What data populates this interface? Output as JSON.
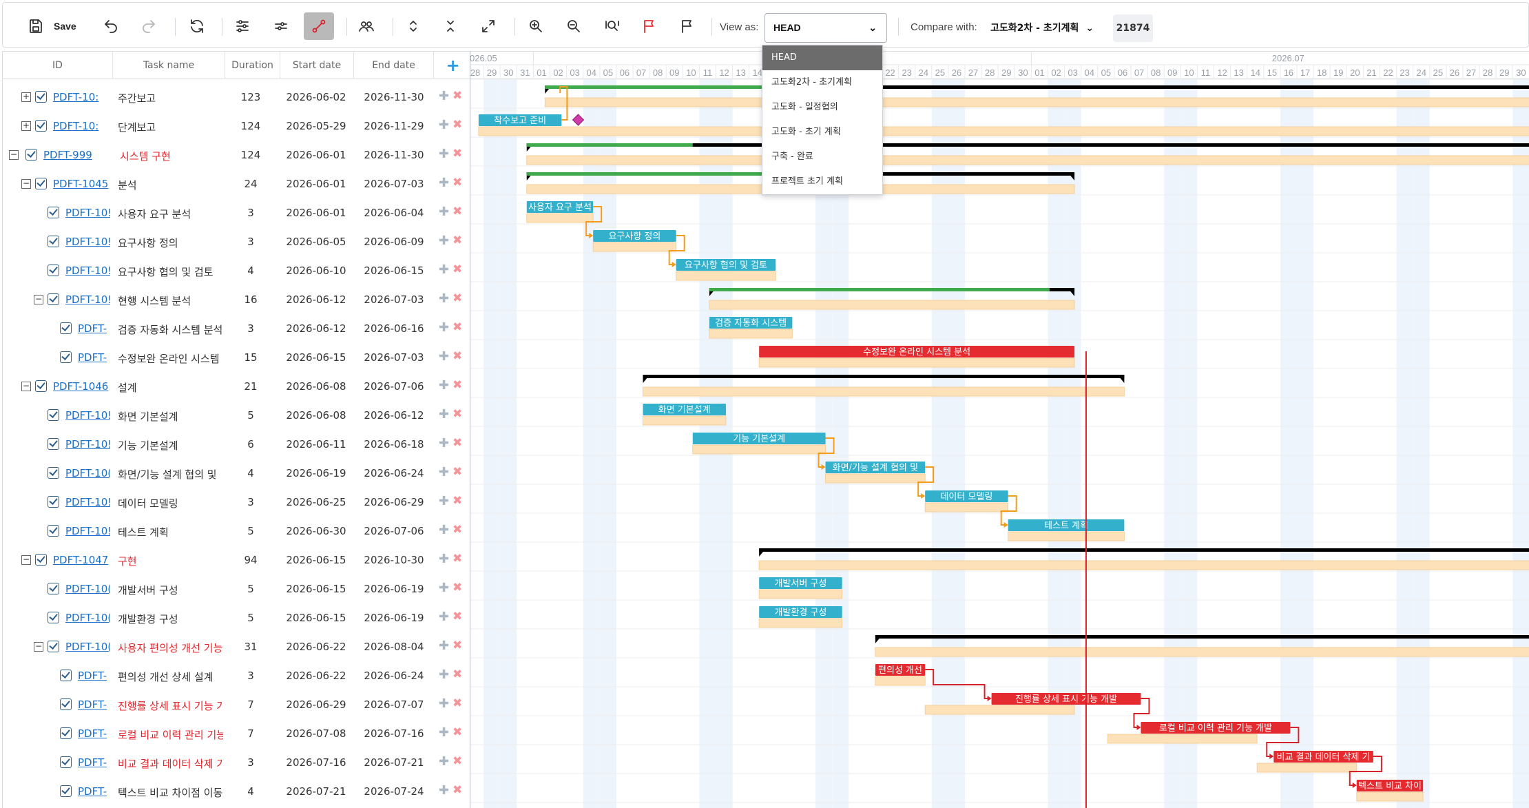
{
  "toolbar": {
    "save_label": "Save",
    "view_label": "View as:",
    "view_value": "HEAD",
    "compare_label": "Compare with:",
    "compare_value": "고도화2차 - 초기계획",
    "count": "21874"
  },
  "view_options": [
    "HEAD",
    "고도화2차 - 초기계획",
    "고도화 - 일정협의",
    "고도화 - 초기 계획",
    "구축 - 완료",
    "프로젝트 초기 계획"
  ],
  "grid": {
    "columns": [
      "ID",
      "Task name",
      "Duration",
      "Start date",
      "End date"
    ],
    "rows": [
      {
        "id": "PDFT-10:",
        "name": "주간보고",
        "duration": "123",
        "start": "2026-06-02",
        "end": "2026-11-30",
        "level": 1,
        "toggle": "+",
        "red": false
      },
      {
        "id": "PDFT-10:",
        "name": "단계보고",
        "duration": "124",
        "start": "2026-05-29",
        "end": "2026-11-29",
        "level": 1,
        "toggle": "+",
        "red": false
      },
      {
        "id": "PDFT-999",
        "name": "시스템 구현",
        "duration": "124",
        "start": "2026-06-01",
        "end": "2026-11-30",
        "level": 0,
        "toggle": "−",
        "red": true
      },
      {
        "id": "PDFT-1045",
        "name": "분석",
        "duration": "24",
        "start": "2026-06-01",
        "end": "2026-07-03",
        "level": 1,
        "toggle": "−",
        "red": false
      },
      {
        "id": "PDFT-10!",
        "name": "사용자 요구 분석",
        "duration": "3",
        "start": "2026-06-01",
        "end": "2026-06-04",
        "level": 2,
        "toggle": "",
        "red": false
      },
      {
        "id": "PDFT-10!",
        "name": "요구사항 정의",
        "duration": "3",
        "start": "2026-06-05",
        "end": "2026-06-09",
        "level": 2,
        "toggle": "",
        "red": false
      },
      {
        "id": "PDFT-10!",
        "name": "요구사항 협의 및 검토",
        "duration": "4",
        "start": "2026-06-10",
        "end": "2026-06-15",
        "level": 2,
        "toggle": "",
        "red": false
      },
      {
        "id": "PDFT-10!",
        "name": "현행 시스템 분석",
        "duration": "16",
        "start": "2026-06-12",
        "end": "2026-07-03",
        "level": 2,
        "toggle": "−",
        "red": false
      },
      {
        "id": "PDFT-",
        "name": "검증 자동화 시스템 분석",
        "duration": "3",
        "start": "2026-06-12",
        "end": "2026-06-16",
        "level": 3,
        "toggle": "",
        "red": false
      },
      {
        "id": "PDFT-",
        "name": "수정보완 온라인 시스템",
        "duration": "15",
        "start": "2026-06-15",
        "end": "2026-07-03",
        "level": 3,
        "toggle": "",
        "red": false
      },
      {
        "id": "PDFT-1046",
        "name": "설계",
        "duration": "21",
        "start": "2026-06-08",
        "end": "2026-07-06",
        "level": 1,
        "toggle": "−",
        "red": false
      },
      {
        "id": "PDFT-10!",
        "name": "화면 기본설계",
        "duration": "5",
        "start": "2026-06-08",
        "end": "2026-06-12",
        "level": 2,
        "toggle": "",
        "red": false
      },
      {
        "id": "PDFT-10!",
        "name": "기능 기본설계",
        "duration": "6",
        "start": "2026-06-11",
        "end": "2026-06-18",
        "level": 2,
        "toggle": "",
        "red": false
      },
      {
        "id": "PDFT-10(",
        "name": "화면/기능 설계 협의 및",
        "duration": "4",
        "start": "2026-06-19",
        "end": "2026-06-24",
        "level": 2,
        "toggle": "",
        "red": false
      },
      {
        "id": "PDFT-10!",
        "name": "데이터 모델링",
        "duration": "3",
        "start": "2026-06-25",
        "end": "2026-06-29",
        "level": 2,
        "toggle": "",
        "red": false
      },
      {
        "id": "PDFT-10!",
        "name": "테스트 계획",
        "duration": "5",
        "start": "2026-06-30",
        "end": "2026-07-06",
        "level": 2,
        "toggle": "",
        "red": false
      },
      {
        "id": "PDFT-1047",
        "name": "구현",
        "duration": "94",
        "start": "2026-06-15",
        "end": "2026-10-30",
        "level": 1,
        "toggle": "−",
        "red": true
      },
      {
        "id": "PDFT-10(",
        "name": "개발서버 구성",
        "duration": "5",
        "start": "2026-06-15",
        "end": "2026-06-19",
        "level": 2,
        "toggle": "",
        "red": false
      },
      {
        "id": "PDFT-10(",
        "name": "개발환경 구성",
        "duration": "5",
        "start": "2026-06-15",
        "end": "2026-06-19",
        "level": 2,
        "toggle": "",
        "red": false
      },
      {
        "id": "PDFT-10(",
        "name": "사용자 편의성 개선 기능",
        "duration": "31",
        "start": "2026-06-22",
        "end": "2026-08-04",
        "level": 2,
        "toggle": "−",
        "red": true
      },
      {
        "id": "PDFT-",
        "name": "편의성 개선 상세 설계",
        "duration": "3",
        "start": "2026-06-22",
        "end": "2026-06-24",
        "level": 3,
        "toggle": "",
        "red": false
      },
      {
        "id": "PDFT-",
        "name": "진행률 상세 표시 기능 가",
        "duration": "7",
        "start": "2026-06-29",
        "end": "2026-07-07",
        "level": 3,
        "toggle": "",
        "red": true
      },
      {
        "id": "PDFT-",
        "name": "로컬 비교 이력 관리 기능",
        "duration": "7",
        "start": "2026-07-08",
        "end": "2026-07-16",
        "level": 3,
        "toggle": "",
        "red": true
      },
      {
        "id": "PDFT-",
        "name": "비교 결과 데이터 삭제 기",
        "duration": "3",
        "start": "2026-07-16",
        "end": "2026-07-21",
        "level": 3,
        "toggle": "",
        "red": true
      },
      {
        "id": "PDFT-",
        "name": "텍스트 비교 차이점 이동",
        "duration": "4",
        "start": "2026-07-21",
        "end": "2026-07-24",
        "level": 3,
        "toggle": "",
        "red": false
      }
    ]
  },
  "timeline": {
    "month_labels": [
      {
        "label": "026.05",
        "day_index": 0
      },
      {
        "label": "2026.07",
        "day_index": 48
      }
    ],
    "days": [
      "28",
      "29",
      "30",
      "31",
      "01",
      "02",
      "03",
      "04",
      "05",
      "06",
      "07",
      "08",
      "09",
      "10",
      "11",
      "12",
      "13",
      "14",
      "15",
      "16",
      "17",
      "18",
      "19",
      "20",
      "21",
      "22",
      "23",
      "24",
      "25",
      "26",
      "27",
      "28",
      "29",
      "30",
      "01",
      "02",
      "03",
      "04",
      "05",
      "06",
      "07",
      "08",
      "09",
      "10",
      "11",
      "12",
      "13",
      "14",
      "15",
      "16",
      "17",
      "18",
      "19",
      "20",
      "21",
      "22",
      "23",
      "24",
      "25",
      "26",
      "27",
      "28",
      "29",
      "30",
      "31"
    ],
    "weekend_day_indexes": [
      1,
      2,
      7,
      8,
      14,
      15,
      21,
      22,
      28,
      29,
      35,
      36,
      42,
      43,
      49,
      50,
      56,
      57,
      63,
      64
    ],
    "today_day_index": 37.3
  },
  "colors": {
    "task_bar": "#32b0cc",
    "critical_bar": "#e32b30",
    "baseline_bar": "#fde1b8",
    "summary_bar": "#000000",
    "progress": "#3faa4c",
    "link_normal": "#f59b1a",
    "link_critical": "#d3232b",
    "milestone": "#cf3ba9",
    "today_line": "#d81e2c"
  },
  "gantt_tasks": [
    {
      "row": 0,
      "type": "summary",
      "start": 4.7,
      "end": 70,
      "progress": 13.4,
      "base_start": 4.7,
      "base_end": 70
    },
    {
      "row": 1,
      "type": "task",
      "label": "착수보고 준비",
      "start": 0.7,
      "end": 5.7,
      "base_start": 0.7,
      "base_end": 70,
      "milestone": 6.7
    },
    {
      "row": 2,
      "type": "summary",
      "start": 3.6,
      "end": 70,
      "progress": 10.0,
      "base_start": 3.6,
      "base_end": 70
    },
    {
      "row": 3,
      "type": "summary",
      "start": 3.6,
      "end": 36.6,
      "progress": 17.4,
      "base_start": 3.6,
      "base_end": 36.6
    },
    {
      "row": 4,
      "type": "task",
      "label": "사용자 요구 분석",
      "start": 3.6,
      "end": 7.6,
      "base_start": 3.6,
      "base_end": 7.6
    },
    {
      "row": 5,
      "type": "task",
      "label": "요구사항 정의",
      "start": 7.6,
      "end": 12.6,
      "base_start": 7.6,
      "base_end": 12.6
    },
    {
      "row": 6,
      "type": "task",
      "label": "요구사항 협의 및 검토",
      "start": 12.6,
      "end": 18.6,
      "base_start": 12.6,
      "base_end": 18.6
    },
    {
      "row": 7,
      "type": "summary",
      "start": 14.6,
      "end": 36.6,
      "progress": 20.5,
      "base_start": 14.6,
      "base_end": 36.6
    },
    {
      "row": 8,
      "type": "task",
      "label": "검증 자동화 시스템",
      "start": 14.6,
      "end": 19.6,
      "base_start": 14.6,
      "base_end": 19.6
    },
    {
      "row": 9,
      "type": "critical",
      "label": "수정보완 온라인 시스템 분석",
      "start": 17.6,
      "end": 36.6,
      "base_start": 17.6,
      "base_end": 36.6
    },
    {
      "row": 10,
      "type": "summary",
      "start": 10.6,
      "end": 39.6,
      "progress": 0,
      "base_start": 10.6,
      "base_end": 39.6
    },
    {
      "row": 11,
      "type": "task",
      "label": "화면 기본설계",
      "start": 10.6,
      "end": 15.6,
      "base_start": 10.6,
      "base_end": 15.6
    },
    {
      "row": 12,
      "type": "task",
      "label": "기능 기본설계",
      "start": 13.6,
      "end": 21.6,
      "base_start": 13.6,
      "base_end": 21.6
    },
    {
      "row": 13,
      "type": "task",
      "label": "화면/기능 설계 협의 및",
      "start": 21.6,
      "end": 27.6,
      "base_start": 21.6,
      "base_end": 27.6
    },
    {
      "row": 14,
      "type": "task",
      "label": "데이터 모델링",
      "start": 27.6,
      "end": 32.6,
      "base_start": 27.6,
      "base_end": 32.6
    },
    {
      "row": 15,
      "type": "task",
      "label": "테스트 계획",
      "start": 32.6,
      "end": 39.6,
      "base_start": 32.6,
      "base_end": 39.6
    },
    {
      "row": 16,
      "type": "summary",
      "start": 17.6,
      "end": 70,
      "progress": 0,
      "base_start": 17.6,
      "base_end": 70
    },
    {
      "row": 17,
      "type": "task",
      "label": "개발서버 구성",
      "start": 17.6,
      "end": 22.6,
      "base_start": 17.6,
      "base_end": 22.6
    },
    {
      "row": 18,
      "type": "task",
      "label": "개발환경 구성",
      "start": 17.6,
      "end": 22.6,
      "base_start": 17.6,
      "base_end": 22.6
    },
    {
      "row": 19,
      "type": "summary",
      "start": 24.6,
      "end": 70,
      "progress": 0,
      "base_start": 24.6,
      "base_end": 70
    },
    {
      "row": 20,
      "type": "critical",
      "label": "편의성 개선",
      "start": 24.6,
      "end": 27.6,
      "base_start": 24.6,
      "base_end": 27.6
    },
    {
      "row": 21,
      "type": "critical",
      "label": "진행률 상세 표시 기능 개발",
      "start": 31.6,
      "end": 40.6,
      "base_start": 27.6,
      "base_end": 36.6
    },
    {
      "row": 22,
      "type": "critical",
      "label": "로컬 비교 이력 관리 기능 개발",
      "start": 40.6,
      "end": 49.6,
      "base_start": 38.6,
      "base_end": 47.6
    },
    {
      "row": 23,
      "type": "critical",
      "label": "비교 결과 데이터 삭제 기",
      "start": 48.6,
      "end": 54.6,
      "base_start": 47.6,
      "base_end": 53.6
    },
    {
      "row": 24,
      "type": "critical",
      "label": "텍스트 비교 차이",
      "start": 53.6,
      "end": 57.6,
      "base_start": 53.6,
      "base_end": 57.6
    }
  ],
  "links": [
    {
      "from": 1,
      "to": 0,
      "critical": false
    },
    {
      "from": 4,
      "to": 5,
      "critical": false
    },
    {
      "from": 5,
      "to": 6,
      "critical": false
    },
    {
      "from": 12,
      "to": 13,
      "critical": false
    },
    {
      "from": 13,
      "to": 14,
      "critical": false
    },
    {
      "from": 14,
      "to": 15,
      "critical": false
    },
    {
      "from": 20,
      "to": 21,
      "critical": true
    },
    {
      "from": 21,
      "to": 22,
      "critical": true
    },
    {
      "from": 22,
      "to": 23,
      "critical": true
    },
    {
      "from": 23,
      "to": 24,
      "critical": true
    }
  ]
}
